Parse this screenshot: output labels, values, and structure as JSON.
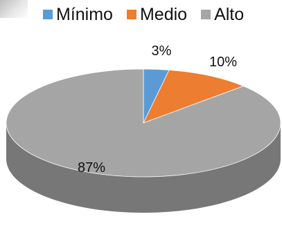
{
  "chart_data": {
    "type": "pie",
    "style": "3d",
    "categories": [
      "Mínimo",
      "Medio",
      "Alto"
    ],
    "values": [
      3,
      10,
      87
    ],
    "labels": [
      "3%",
      "10%",
      "87%"
    ],
    "colors": [
      "#5b9bd5",
      "#ed7d31",
      "#a5a5a5"
    ],
    "legend_position": "top"
  }
}
